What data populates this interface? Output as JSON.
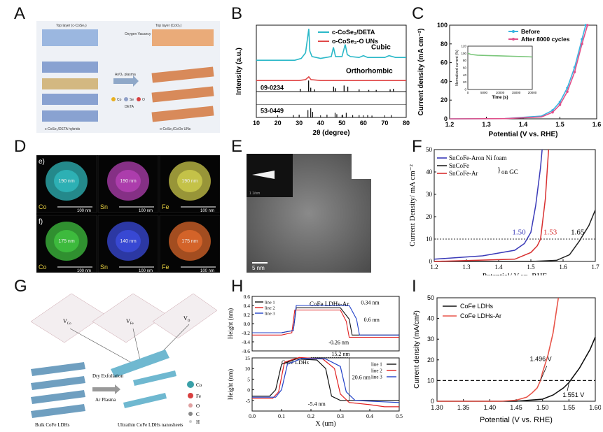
{
  "panel_labels": [
    "A",
    "B",
    "C",
    "D",
    "E",
    "F",
    "G",
    "H",
    "I"
  ],
  "panel_a": {
    "top_left_label": "Top layer (c-CoSe₂)",
    "top_right_label": "Top layer (CoO₂)",
    "oxygen_label": "Oxygen Vacancy",
    "plasma_label": "Ar/O₂ plasma",
    "legend_co": "Co",
    "legend_se": "Se",
    "legend_o": "O",
    "legend_deta": "DETA",
    "bottom_left": "c-CoSe₂/DETA hybrids",
    "bottom_right": "o-CoSe₂/CoOx UNs"
  },
  "panel_d": {
    "row1_label": "e)",
    "row2_label": "f)",
    "elements": [
      "Co",
      "Sn",
      "Fe"
    ],
    "row1_sizes": [
      "190 nm",
      "190 nm",
      "190 nm"
    ],
    "row2_sizes": [
      "175 nm",
      "140 nm",
      "175 nm"
    ],
    "scale": "100 nm",
    "tile_colors_row1": [
      "#2fb5b8",
      "#b03fb0",
      "#c9c64a"
    ],
    "tile_colors_row2": [
      "#3fbf3f",
      "#3a4ad8",
      "#d8662a"
    ]
  },
  "panel_e": {
    "scale": "5 nm",
    "inset_text": "1 1/nm"
  },
  "panel_g": {
    "vco": "V",
    "vco_sub": "Co",
    "vfe_sub": "Fe",
    "vo_sub": "O",
    "dry": "Dry Exfoliation",
    "ar": "Ar Plasma",
    "bulk": "Bulk CoFe LDHs",
    "ultra": "Ultrathin CoFe LDHs nanosheets",
    "legend": [
      "Co",
      "Fe",
      "O",
      "C",
      "H"
    ]
  },
  "chart_data": [
    {
      "id": "B",
      "type": "line",
      "xlabel": "2θ (degree)",
      "ylabel": "Intensity (a.u.)",
      "xlim": [
        10,
        80
      ],
      "xticks": [
        10,
        20,
        30,
        40,
        50,
        60,
        70,
        80
      ],
      "series": [
        {
          "name": "c-CoSe₂/DETA",
          "color": "#2ab8c8",
          "x": [
            10,
            20,
            28,
            31,
            33,
            34.5,
            35,
            36,
            40,
            45,
            46,
            47,
            50,
            51.5,
            52.5,
            54,
            58,
            60,
            62,
            65,
            70,
            72,
            75,
            78,
            80
          ],
          "y": [
            0.62,
            0.62,
            0.62,
            0.64,
            0.7,
            0.96,
            0.72,
            0.66,
            0.64,
            0.66,
            0.76,
            0.66,
            0.66,
            0.79,
            0.68,
            0.66,
            0.65,
            0.67,
            0.65,
            0.65,
            0.65,
            0.67,
            0.65,
            0.65,
            0.65
          ]
        },
        {
          "name": "o-CoSe₂-O UNs",
          "color": "#e04848",
          "x": [
            10,
            20,
            30,
            33,
            34.5,
            35.5,
            40,
            50,
            60,
            70,
            80
          ],
          "y": [
            0.4,
            0.4,
            0.4,
            0.41,
            0.44,
            0.41,
            0.4,
            0.4,
            0.4,
            0.4,
            0.4
          ]
        }
      ],
      "annotations": [
        "Cubic",
        "Orthorhombic",
        "09-0234",
        "53-0449"
      ],
      "ref_09_0234": [
        30.5,
        34.4,
        35.4,
        37.2,
        46.1,
        47.0,
        51.0,
        52.7,
        58.0,
        62.5,
        66.0,
        72.5,
        74.0
      ],
      "ref_09_0234_h": [
        0.25,
        1.0,
        0.35,
        0.2,
        0.45,
        0.3,
        0.55,
        0.45,
        0.2,
        0.15,
        0.15,
        0.2,
        0.25
      ],
      "ref_53_0449": [
        27.3,
        30.0,
        34.1,
        35.4,
        36.3,
        43.0,
        46.8,
        47.6,
        50.3,
        52.0,
        55.0,
        58.0,
        62.0,
        64.0,
        73.0
      ],
      "ref_53_0449_h": [
        0.25,
        0.3,
        0.8,
        1.0,
        0.6,
        0.3,
        0.5,
        0.35,
        0.3,
        0.5,
        0.25,
        0.25,
        0.25,
        0.2,
        0.25
      ]
    },
    {
      "id": "C",
      "type": "line",
      "xlabel": "Potential (V vs. RHE)",
      "ylabel": "Current density (mA cm⁻²)",
      "xlim": [
        1.2,
        1.6
      ],
      "ylim": [
        0,
        100
      ],
      "xticks": [
        1.2,
        1.3,
        1.4,
        1.5,
        1.6
      ],
      "yticks": [
        0,
        20,
        40,
        60,
        80,
        100
      ],
      "legend": "top-right",
      "series": [
        {
          "name": "Before",
          "color": "#39b3e0",
          "x": [
            1.2,
            1.35,
            1.45,
            1.48,
            1.5,
            1.52,
            1.54,
            1.56,
            1.57
          ],
          "y": [
            0,
            0.2,
            3,
            9,
            18,
            33,
            55,
            85,
            100
          ]
        },
        {
          "name": "After 8000 cycles",
          "color": "#e0508a",
          "x": [
            1.2,
            1.35,
            1.45,
            1.48,
            1.5,
            1.52,
            1.54,
            1.56,
            1.575
          ],
          "y": [
            0,
            0.2,
            2,
            7,
            15,
            29,
            50,
            80,
            100
          ]
        }
      ],
      "inset": {
        "xlabel": "Time (s)",
        "ylabel": "Normalized current (%)",
        "xticks": [
          0,
          5000,
          10000,
          15000,
          20000
        ],
        "yticks": [
          0,
          20,
          40,
          60,
          80,
          100,
          120
        ],
        "x": [
          0,
          1000,
          3000,
          6000,
          10000,
          14000,
          18000,
          20000
        ],
        "y": [
          100,
          97,
          95,
          94,
          93,
          92,
          91,
          90
        ],
        "color": "#7ac67a"
      }
    },
    {
      "id": "F",
      "type": "line",
      "xlabel": "Potential/ V vs. RHE",
      "ylabel": "Current Density/ mA cm⁻²",
      "xlim": [
        1.2,
        1.7
      ],
      "ylim": [
        0,
        50
      ],
      "xticks": [
        1.2,
        1.3,
        1.4,
        1.5,
        1.6,
        1.7
      ],
      "yticks": [
        0,
        10,
        20,
        30,
        40,
        50
      ],
      "hline": 10,
      "legend_group_label": "on GC",
      "series": [
        {
          "name": "SnCoFe-Aron Ni foam",
          "color": "#3a3ab8",
          "x": [
            1.2,
            1.35,
            1.45,
            1.48,
            1.5,
            1.515,
            1.53,
            1.535
          ],
          "y": [
            1,
            2.5,
            5,
            8,
            13,
            25,
            42,
            50
          ]
        },
        {
          "name": "SnCoFe",
          "color": "#222222",
          "x": [
            1.2,
            1.5,
            1.58,
            1.62,
            1.65,
            1.68,
            1.7
          ],
          "y": [
            0,
            0,
            0.5,
            3,
            9,
            16,
            23
          ]
        },
        {
          "name": "SnCoFe-Ar",
          "color": "#d83030",
          "x": [
            1.2,
            1.45,
            1.5,
            1.52,
            1.53,
            1.545,
            1.555
          ],
          "y": [
            0,
            1,
            4,
            7,
            10,
            28,
            50
          ]
        }
      ],
      "annotations": [
        "1.50",
        "1.53",
        "1.65"
      ]
    },
    {
      "id": "H-top",
      "type": "line",
      "title": "CoFe LDHs-Ar",
      "ylabel": "Height (nm)",
      "xlim": [
        0,
        0.5
      ],
      "ylim": [
        -0.6,
        0.6
      ],
      "yticks": [
        -0.6,
        -0.4,
        -0.2,
        0.0,
        0.2,
        0.4,
        0.6
      ],
      "series": [
        {
          "name": "line 1",
          "color": "#111111",
          "x": [
            0,
            0.1,
            0.14,
            0.15,
            0.3,
            0.33,
            0.34,
            0.5
          ],
          "y": [
            -0.2,
            -0.2,
            -0.15,
            0.35,
            0.35,
            0.1,
            -0.25,
            -0.25
          ]
        },
        {
          "name": "line 2",
          "color": "#e02020",
          "x": [
            0,
            0.1,
            0.135,
            0.145,
            0.3,
            0.32,
            0.33,
            0.5
          ],
          "y": [
            -0.25,
            -0.25,
            -0.2,
            0.3,
            0.3,
            0.05,
            -0.3,
            -0.3
          ]
        },
        {
          "name": "line 3",
          "color": "#2040c8",
          "x": [
            0,
            0.1,
            0.14,
            0.15,
            0.33,
            0.355,
            0.365,
            0.5
          ],
          "y": [
            -0.2,
            -0.2,
            -0.15,
            0.4,
            0.4,
            0.1,
            -0.25,
            -0.25
          ]
        }
      ],
      "annotations": [
        "0.34 nm",
        "0.6 nm",
        "-0.26 nm"
      ]
    },
    {
      "id": "H-bottom",
      "type": "line",
      "title": "CoFe LDHs",
      "xlabel": "X (um)",
      "ylabel": "Height (nm)",
      "xlim": [
        0,
        0.5
      ],
      "ylim": [
        -10,
        15
      ],
      "xticks": [
        0.0,
        0.1,
        0.2,
        0.3,
        0.4,
        0.5
      ],
      "yticks": [
        -5,
        0,
        5,
        10,
        15
      ],
      "series": [
        {
          "name": "line 1",
          "color": "#111111",
          "x": [
            0,
            0.06,
            0.08,
            0.1,
            0.15,
            0.22,
            0.25,
            0.27,
            0.3,
            0.38,
            0.45,
            0.5
          ],
          "y": [
            -3,
            -3,
            0,
            12,
            14.5,
            14,
            10,
            -3,
            -5,
            -5,
            -5,
            -5
          ]
        },
        {
          "name": "line 2",
          "color": "#e02020",
          "x": [
            0,
            0.07,
            0.09,
            0.11,
            0.16,
            0.24,
            0.28,
            0.3,
            0.33,
            0.4,
            0.45,
            0.5
          ],
          "y": [
            -4,
            -4,
            -1,
            13,
            15.2,
            14.5,
            10,
            -2,
            -6,
            -7,
            -8,
            -8
          ]
        },
        {
          "name": "line 3",
          "color": "#2040c8",
          "x": [
            0,
            0.08,
            0.1,
            0.12,
            0.17,
            0.25,
            0.3,
            0.32,
            0.35,
            0.42,
            0.5
          ],
          "y": [
            -3.5,
            -3.5,
            0,
            12,
            14.8,
            14.5,
            11,
            -1,
            -5,
            -5.5,
            -6
          ]
        }
      ],
      "annotations": [
        "15.2 nm",
        "20.6 nm",
        "-5.4 nm"
      ]
    },
    {
      "id": "I",
      "type": "line",
      "xlabel": "Potential (V vs. RHE)",
      "ylabel": "Current density (mA/cm²)",
      "xlim": [
        1.3,
        1.6
      ],
      "ylim": [
        0,
        50
      ],
      "xticks": [
        1.3,
        1.35,
        1.4,
        1.45,
        1.5,
        1.55,
        1.6
      ],
      "yticks": [
        0,
        10,
        20,
        30,
        40,
        50
      ],
      "hline": 10,
      "legend": "top-left",
      "series": [
        {
          "name": "CoFe LDHs",
          "color": "#111111",
          "x": [
            1.3,
            1.45,
            1.5,
            1.52,
            1.54,
            1.55,
            1.57,
            1.59,
            1.6
          ],
          "y": [
            0,
            0,
            1,
            3,
            6.5,
            9,
            16,
            25,
            31
          ]
        },
        {
          "name": "CoFe LDHs-Ar",
          "color": "#e8554a",
          "x": [
            1.3,
            1.42,
            1.45,
            1.47,
            1.48,
            1.49,
            1.496,
            1.5,
            1.51,
            1.52,
            1.53
          ],
          "y": [
            0,
            0,
            0.5,
            2,
            4,
            6.5,
            10,
            14,
            22,
            33,
            50
          ]
        }
      ],
      "annotations": [
        "1.496 V",
        "1.551 V"
      ]
    }
  ]
}
